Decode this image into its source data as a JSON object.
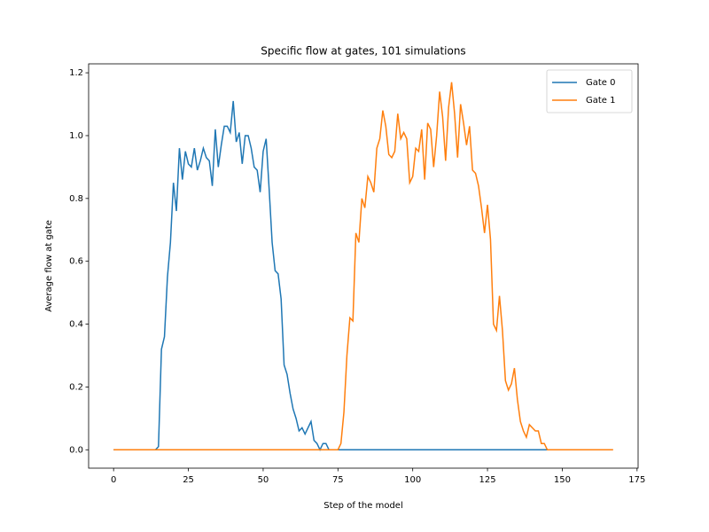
{
  "chart_data": {
    "type": "line",
    "title": "Specific flow at gates, 101 simulations",
    "xlabel": "Step of the model",
    "ylabel": "Average flow at gate",
    "x": [
      0,
      1,
      2,
      3,
      4,
      5,
      6,
      7,
      8,
      9,
      10,
      11,
      12,
      13,
      14,
      15,
      16,
      17,
      18,
      19,
      20,
      21,
      22,
      23,
      24,
      25,
      26,
      27,
      28,
      29,
      30,
      31,
      32,
      33,
      34,
      35,
      36,
      37,
      38,
      39,
      40,
      41,
      42,
      43,
      44,
      45,
      46,
      47,
      48,
      49,
      50,
      51,
      52,
      53,
      54,
      55,
      56,
      57,
      58,
      59,
      60,
      61,
      62,
      63,
      64,
      65,
      66,
      67,
      68,
      69,
      70,
      71,
      72,
      73,
      74,
      75,
      76,
      77,
      78,
      79,
      80,
      81,
      82,
      83,
      84,
      85,
      86,
      87,
      88,
      89,
      90,
      91,
      92,
      93,
      94,
      95,
      96,
      97,
      98,
      99,
      100,
      101,
      102,
      103,
      104,
      105,
      106,
      107,
      108,
      109,
      110,
      111,
      112,
      113,
      114,
      115,
      116,
      117,
      118,
      119,
      120,
      121,
      122,
      123,
      124,
      125,
      126,
      127,
      128,
      129,
      130,
      131,
      132,
      133,
      134,
      135,
      136,
      137,
      138,
      139,
      140,
      141,
      142,
      143,
      144,
      145,
      146,
      147,
      148,
      149,
      150,
      151,
      152,
      153,
      154,
      155,
      156,
      157,
      158,
      159,
      160,
      161,
      162,
      163,
      164,
      165,
      166,
      167
    ],
    "series": [
      {
        "name": "Gate 0",
        "color": "#1f77b4",
        "values": [
          0,
          0,
          0,
          0,
          0,
          0,
          0,
          0,
          0,
          0,
          0,
          0,
          0,
          0,
          0,
          0.01,
          0.32,
          0.36,
          0.55,
          0.66,
          0.85,
          0.76,
          0.96,
          0.86,
          0.95,
          0.91,
          0.9,
          0.96,
          0.89,
          0.92,
          0.96,
          0.93,
          0.92,
          0.84,
          1.02,
          0.9,
          0.97,
          1.03,
          1.03,
          1.01,
          1.11,
          0.98,
          1.01,
          0.91,
          1.0,
          1.0,
          0.96,
          0.9,
          0.89,
          0.82,
          0.95,
          0.99,
          0.83,
          0.66,
          0.57,
          0.56,
          0.48,
          0.27,
          0.24,
          0.18,
          0.13,
          0.1,
          0.06,
          0.07,
          0.05,
          0.07,
          0.09,
          0.03,
          0.02,
          0.0,
          0.02,
          0.02,
          0.0,
          0,
          0,
          0,
          0,
          0,
          0,
          0,
          0,
          0,
          0,
          0,
          0,
          0,
          0,
          0,
          0,
          0,
          0,
          0,
          0,
          0,
          0,
          0,
          0,
          0,
          0,
          0,
          0,
          0,
          0,
          0,
          0,
          0,
          0,
          0,
          0,
          0,
          0,
          0,
          0,
          0,
          0,
          0,
          0,
          0,
          0,
          0,
          0,
          0,
          0,
          0,
          0,
          0,
          0,
          0,
          0,
          0,
          0,
          0,
          0,
          0,
          0,
          0,
          0,
          0,
          0,
          0,
          0,
          0,
          0,
          0,
          0,
          0,
          null,
          null,
          null,
          null,
          null,
          null,
          null,
          null,
          null,
          null,
          null,
          null,
          null,
          null,
          null,
          null,
          null,
          null,
          null,
          null,
          null,
          null
        ]
      },
      {
        "name": "Gate 1",
        "color": "#ff7f0e",
        "values": [
          0,
          0,
          0,
          0,
          0,
          0,
          0,
          0,
          0,
          0,
          0,
          0,
          0,
          0,
          0,
          0,
          0,
          0,
          0,
          0,
          0,
          0,
          0,
          0,
          0,
          0,
          0,
          0,
          0,
          0,
          0,
          0,
          0,
          0,
          0,
          0,
          0,
          0,
          0,
          0,
          0,
          0,
          0,
          0,
          0,
          0,
          0,
          0,
          0,
          0,
          0,
          0,
          0,
          0,
          0,
          0,
          0,
          0,
          0,
          0,
          0,
          0,
          0,
          0,
          0,
          0,
          0,
          0,
          0,
          0,
          0,
          0,
          0,
          0,
          0,
          0,
          0.02,
          0.12,
          0.3,
          0.42,
          0.41,
          0.69,
          0.66,
          0.8,
          0.77,
          0.87,
          0.85,
          0.82,
          0.96,
          0.99,
          1.08,
          1.03,
          0.94,
          0.93,
          0.95,
          1.07,
          0.99,
          1.01,
          0.99,
          0.85,
          0.87,
          0.96,
          0.95,
          1.02,
          0.86,
          1.04,
          1.02,
          0.9,
          1.0,
          1.14,
          1.06,
          0.92,
          1.09,
          1.17,
          1.07,
          0.93,
          1.1,
          1.04,
          0.97,
          1.03,
          0.89,
          0.88,
          0.84,
          0.77,
          0.69,
          0.78,
          0.67,
          0.4,
          0.38,
          0.49,
          0.38,
          0.22,
          0.19,
          0.21,
          0.26,
          0.16,
          0.09,
          0.06,
          0.04,
          0.08,
          0.07,
          0.06,
          0.06,
          0.02,
          0.02,
          0.0,
          0,
          0,
          0,
          0,
          0,
          0,
          0,
          0,
          0,
          0,
          0,
          0,
          0,
          0,
          0,
          0,
          0,
          0,
          0,
          0,
          0,
          0
        ]
      }
    ],
    "xlim": [
      -8.35,
      175.35
    ],
    "ylim": [
      -0.0585,
      1.2285
    ],
    "xticks": [
      0,
      25,
      50,
      75,
      100,
      125,
      150,
      175
    ],
    "yticks": [
      {
        "value": 0,
        "label": "0.0"
      },
      0.2,
      0.4,
      0.6,
      0.8,
      {
        "value": 1,
        "label": "1.0"
      },
      1.2
    ],
    "grid": false,
    "legend": "upper right"
  }
}
